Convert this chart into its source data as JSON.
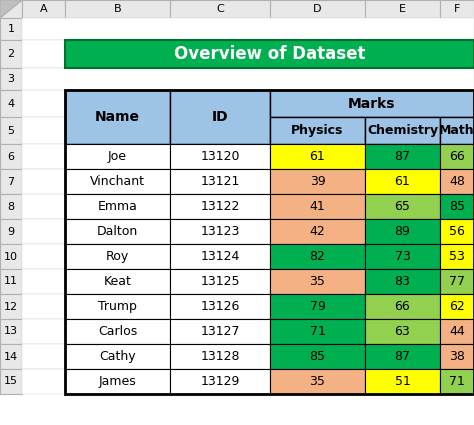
{
  "title": "Overview of Dataset",
  "title_bg": "#00B050",
  "title_color": "#FFFFFF",
  "header_bg": "#9DC3E6",
  "outer_bg": "#FFFFFF",
  "grid_bg": "#F2F2F2",
  "grid_edge": "#C0C0C0",
  "names": [
    "Joe",
    "Vinchant",
    "Emma",
    "Dalton",
    "Roy",
    "Keat",
    "Trump",
    "Carlos",
    "Cathy",
    "James"
  ],
  "ids": [
    13120,
    13121,
    13122,
    13123,
    13124,
    13125,
    13126,
    13127,
    13128,
    13129
  ],
  "physics": [
    61,
    39,
    41,
    42,
    82,
    35,
    79,
    71,
    85,
    35
  ],
  "chemistry": [
    87,
    61,
    65,
    89,
    73,
    83,
    66,
    63,
    87,
    51
  ],
  "math": [
    66,
    48,
    85,
    56,
    53,
    77,
    62,
    44,
    38,
    71
  ],
  "physics_colors": [
    "#FFFF00",
    "#F4B183",
    "#F4B183",
    "#F4B183",
    "#00B050",
    "#F4B183",
    "#00B050",
    "#00B050",
    "#00B050",
    "#F4B183"
  ],
  "chemistry_colors": [
    "#00B050",
    "#FFFF00",
    "#92D050",
    "#00B050",
    "#00B050",
    "#00B050",
    "#92D050",
    "#92D050",
    "#00B050",
    "#FFFF00"
  ],
  "math_colors": [
    "#92D050",
    "#F4B183",
    "#00B050",
    "#FFFF00",
    "#FFFF00",
    "#92D050",
    "#FFFF00",
    "#F4B183",
    "#F4B183",
    "#92D050"
  ],
  "excel_col_labels": [
    "",
    "A",
    "B",
    "C",
    "D",
    "E",
    "F"
  ],
  "excel_row_labels": [
    "1",
    "2",
    "3",
    "4",
    "5",
    "6",
    "7",
    "8",
    "9",
    "10",
    "11",
    "12",
    "13",
    "14",
    "15"
  ]
}
